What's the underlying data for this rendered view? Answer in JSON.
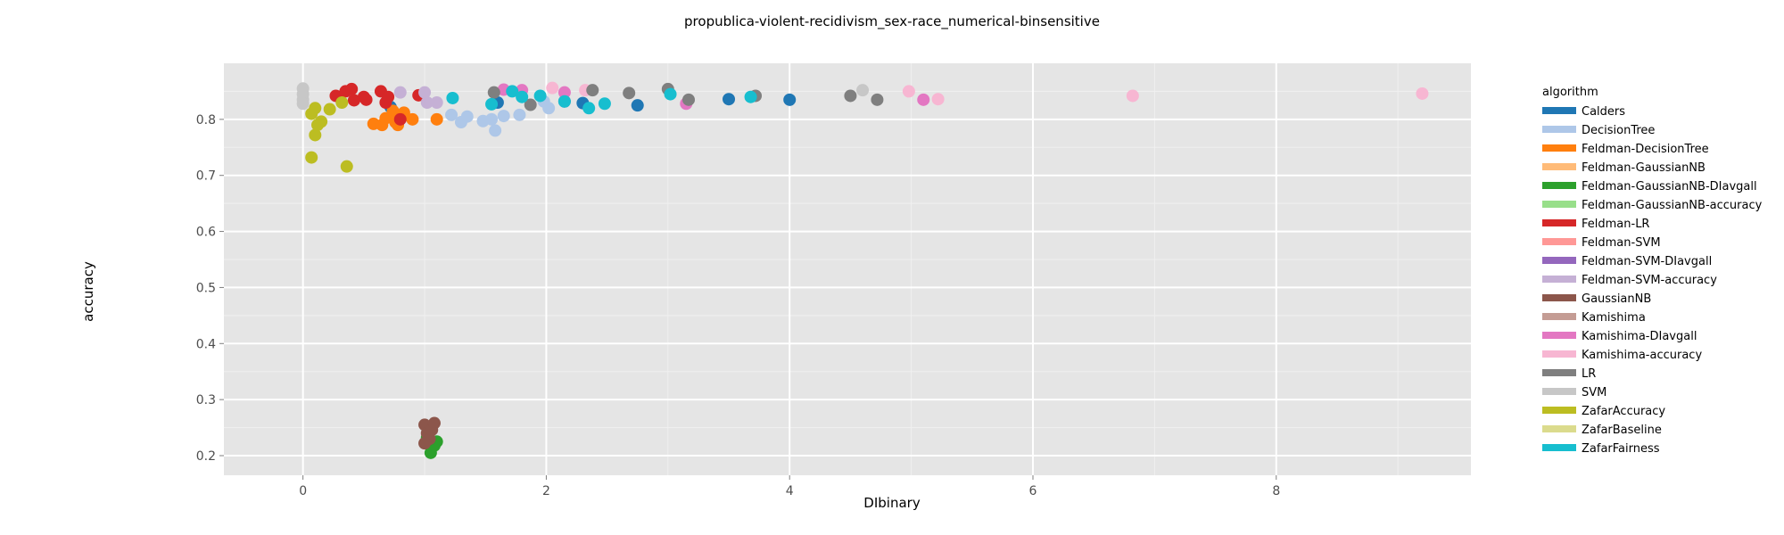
{
  "chart_data": {
    "type": "scatter",
    "title": "propublica-violent-recidivism_sex-race_numerical-binsensitive",
    "xlabel": "DIbinary",
    "ylabel": "accuracy",
    "xlim": [
      -0.65,
      9.6
    ],
    "ylim": [
      0.165,
      0.9
    ],
    "xticks": [
      0,
      2,
      4,
      6,
      8
    ],
    "yticks": [
      0.2,
      0.3,
      0.4,
      0.5,
      0.6,
      0.7,
      0.8
    ],
    "grid": true,
    "legend_title": "algorithm",
    "legend_position": "right",
    "series": [
      {
        "name": "Calders",
        "color": "#1f77b4",
        "points": [
          [
            0.72,
            0.822
          ],
          [
            2.15,
            0.832
          ],
          [
            2.3,
            0.829
          ],
          [
            2.75,
            0.825
          ],
          [
            3.5,
            0.836
          ],
          [
            4.0,
            0.835
          ],
          [
            1.6,
            0.83
          ]
        ]
      },
      {
        "name": "DecisionTree",
        "color": "#aec7e8",
        "points": [
          [
            1.22,
            0.808
          ],
          [
            1.3,
            0.795
          ],
          [
            1.35,
            0.805
          ],
          [
            1.48,
            0.797
          ],
          [
            1.55,
            0.8
          ],
          [
            1.58,
            0.78
          ],
          [
            1.65,
            0.806
          ],
          [
            1.78,
            0.808
          ],
          [
            2.02,
            0.82
          ],
          [
            1.98,
            0.832
          ]
        ]
      },
      {
        "name": "Feldman-DecisionTree",
        "color": "#ff7f0e",
        "points": [
          [
            0.58,
            0.792
          ],
          [
            0.65,
            0.79
          ],
          [
            0.68,
            0.802
          ],
          [
            0.74,
            0.815
          ],
          [
            0.76,
            0.795
          ],
          [
            0.78,
            0.79
          ],
          [
            0.83,
            0.812
          ],
          [
            0.9,
            0.8
          ],
          [
            1.1,
            0.8
          ]
        ]
      },
      {
        "name": "Feldman-GaussianNB",
        "color": "#ffbb78",
        "points": []
      },
      {
        "name": "Feldman-GaussianNB-DIavgall",
        "color": "#2ca02c",
        "points": [
          [
            1.05,
            0.205
          ],
          [
            1.08,
            0.218
          ],
          [
            1.1,
            0.225
          ],
          [
            1.02,
            0.232
          ]
        ]
      },
      {
        "name": "Feldman-GaussianNB-accuracy",
        "color": "#98df8a",
        "points": []
      },
      {
        "name": "Feldman-LR",
        "color": "#d62728",
        "points": [
          [
            0.27,
            0.842
          ],
          [
            0.35,
            0.85
          ],
          [
            0.4,
            0.854
          ],
          [
            0.42,
            0.834
          ],
          [
            0.5,
            0.84
          ],
          [
            0.52,
            0.835
          ],
          [
            0.64,
            0.85
          ],
          [
            0.68,
            0.83
          ],
          [
            0.7,
            0.84
          ],
          [
            0.8,
            0.8
          ],
          [
            0.95,
            0.843
          ]
        ]
      },
      {
        "name": "Feldman-SVM",
        "color": "#ff9896",
        "points": []
      },
      {
        "name": "Feldman-SVM-DIavgall",
        "color": "#9467bd",
        "points": []
      },
      {
        "name": "Feldman-SVM-accuracy",
        "color": "#c5b0d5",
        "points": [
          [
            0.8,
            0.848
          ],
          [
            1.0,
            0.848
          ],
          [
            1.02,
            0.83
          ],
          [
            1.1,
            0.83
          ]
        ]
      },
      {
        "name": "GaussianNB",
        "color": "#8c564b",
        "points": [
          [
            1.0,
            0.255
          ],
          [
            1.02,
            0.24
          ],
          [
            1.04,
            0.23
          ],
          [
            1.0,
            0.222
          ],
          [
            1.06,
            0.246
          ],
          [
            1.08,
            0.258
          ]
        ]
      },
      {
        "name": "Kamishima",
        "color": "#c49c94",
        "points": []
      },
      {
        "name": "Kamishima-DIavgall",
        "color": "#e377c2",
        "points": [
          [
            1.65,
            0.853
          ],
          [
            1.8,
            0.852
          ],
          [
            2.15,
            0.848
          ],
          [
            3.15,
            0.828
          ],
          [
            5.1,
            0.835
          ]
        ]
      },
      {
        "name": "Kamishima-accuracy",
        "color": "#f7b6d2",
        "points": [
          [
            2.05,
            0.856
          ],
          [
            2.32,
            0.852
          ],
          [
            4.98,
            0.85
          ],
          [
            5.22,
            0.836
          ],
          [
            6.82,
            0.842
          ],
          [
            9.2,
            0.846
          ]
        ]
      },
      {
        "name": "LR",
        "color": "#7f7f7f",
        "points": [
          [
            1.57,
            0.848
          ],
          [
            1.87,
            0.826
          ],
          [
            2.38,
            0.852
          ],
          [
            2.68,
            0.847
          ],
          [
            3.0,
            0.854
          ],
          [
            3.17,
            0.835
          ],
          [
            3.72,
            0.842
          ],
          [
            4.5,
            0.842
          ],
          [
            4.72,
            0.835
          ]
        ]
      },
      {
        "name": "SVM",
        "color": "#c7c7c7",
        "points": [
          [
            0.0,
            0.855
          ],
          [
            0.0,
            0.845
          ],
          [
            0.0,
            0.835
          ],
          [
            0.0,
            0.828
          ],
          [
            4.6,
            0.852
          ]
        ]
      },
      {
        "name": "ZafarAccuracy",
        "color": "#bcbd22",
        "points": [
          [
            0.07,
            0.81
          ],
          [
            0.1,
            0.82
          ],
          [
            0.12,
            0.79
          ],
          [
            0.1,
            0.772
          ],
          [
            0.15,
            0.796
          ],
          [
            0.22,
            0.818
          ],
          [
            0.32,
            0.83
          ],
          [
            0.36,
            0.716
          ],
          [
            0.07,
            0.732
          ]
        ]
      },
      {
        "name": "ZafarBaseline",
        "color": "#dbdb8d",
        "points": []
      },
      {
        "name": "ZafarFairness",
        "color": "#17becf",
        "points": [
          [
            1.23,
            0.838
          ],
          [
            1.55,
            0.827
          ],
          [
            1.72,
            0.85
          ],
          [
            1.8,
            0.84
          ],
          [
            1.95,
            0.842
          ],
          [
            2.15,
            0.832
          ],
          [
            2.35,
            0.82
          ],
          [
            2.48,
            0.828
          ],
          [
            3.02,
            0.845
          ],
          [
            3.68,
            0.84
          ]
        ]
      }
    ]
  }
}
